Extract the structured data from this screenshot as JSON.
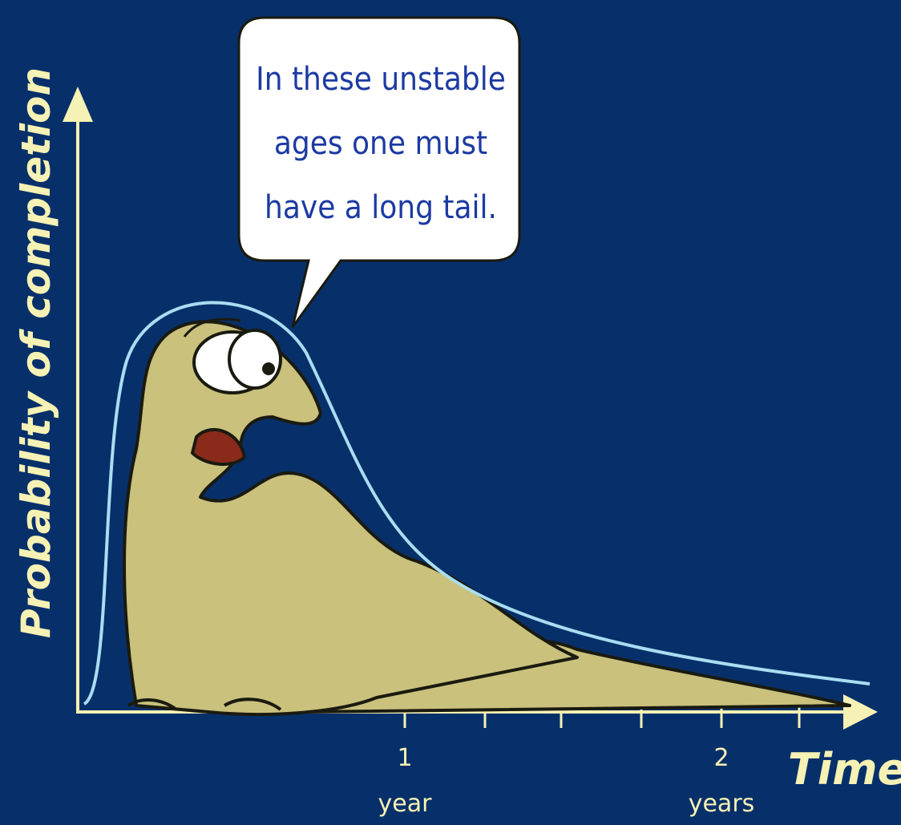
{
  "y_axis": {
    "label": "Probability of completion"
  },
  "x_axis": {
    "label": "Time",
    "ticks": [
      {
        "number": "1",
        "unit": "year"
      },
      {
        "number": "2",
        "unit": "years"
      }
    ]
  },
  "speech_bubble": {
    "lines": [
      "In these unstable",
      "ages one must",
      "have a long tail."
    ]
  }
}
